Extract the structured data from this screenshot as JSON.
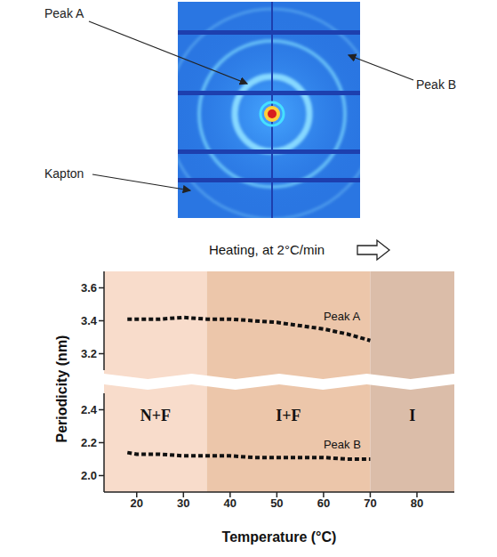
{
  "image_panel": {
    "labels": [
      "Peak A",
      "Peak B",
      "Kapton"
    ]
  },
  "phase_regions": [
    {
      "label": "N+F",
      "x": [
        13,
        35
      ],
      "color": "#f8dccb"
    },
    {
      "label": "I+F",
      "x": [
        35,
        70
      ],
      "color": "#ecc6aa"
    },
    {
      "label": "I",
      "x": [
        70,
        88
      ],
      "color": "#dbbda9"
    }
  ],
  "chart_data": [
    {
      "type": "line",
      "annotation": "Heating, at 2°C/min",
      "x": [
        18,
        20,
        25,
        30,
        35,
        40,
        45,
        50,
        55,
        60,
        65,
        70
      ],
      "xlim": [
        13,
        88
      ],
      "ylim": [
        3.1,
        3.7
      ],
      "yticks": [
        3.2,
        3.4,
        3.6
      ],
      "tick_labels": "y",
      "series": [
        {
          "name": "Peak A",
          "color": "#111111",
          "line_style": "dotted",
          "values": [
            3.41,
            3.41,
            3.41,
            3.42,
            3.41,
            3.41,
            3.4,
            3.39,
            3.37,
            3.35,
            3.32,
            3.28
          ]
        }
      ]
    },
    {
      "type": "line",
      "x_label": "Temperature (°C)",
      "y_label": "Periodicity (nm)",
      "x": [
        18,
        20,
        25,
        30,
        35,
        40,
        45,
        50,
        55,
        60,
        65,
        70
      ],
      "xlim": [
        13,
        88
      ],
      "xticks": [
        20,
        30,
        40,
        50,
        60,
        70,
        80
      ],
      "ylim": [
        1.9,
        2.5
      ],
      "yticks": [
        {
          "value": 2,
          "label": "2.0"
        },
        2.2,
        2.4
      ],
      "series": [
        {
          "name": "Peak B",
          "color": "#111111",
          "line_style": "dotted",
          "values": [
            2.14,
            2.13,
            2.13,
            2.12,
            2.12,
            2.12,
            2.11,
            2.11,
            2.11,
            2.11,
            2.1,
            2.1
          ]
        }
      ]
    }
  ]
}
